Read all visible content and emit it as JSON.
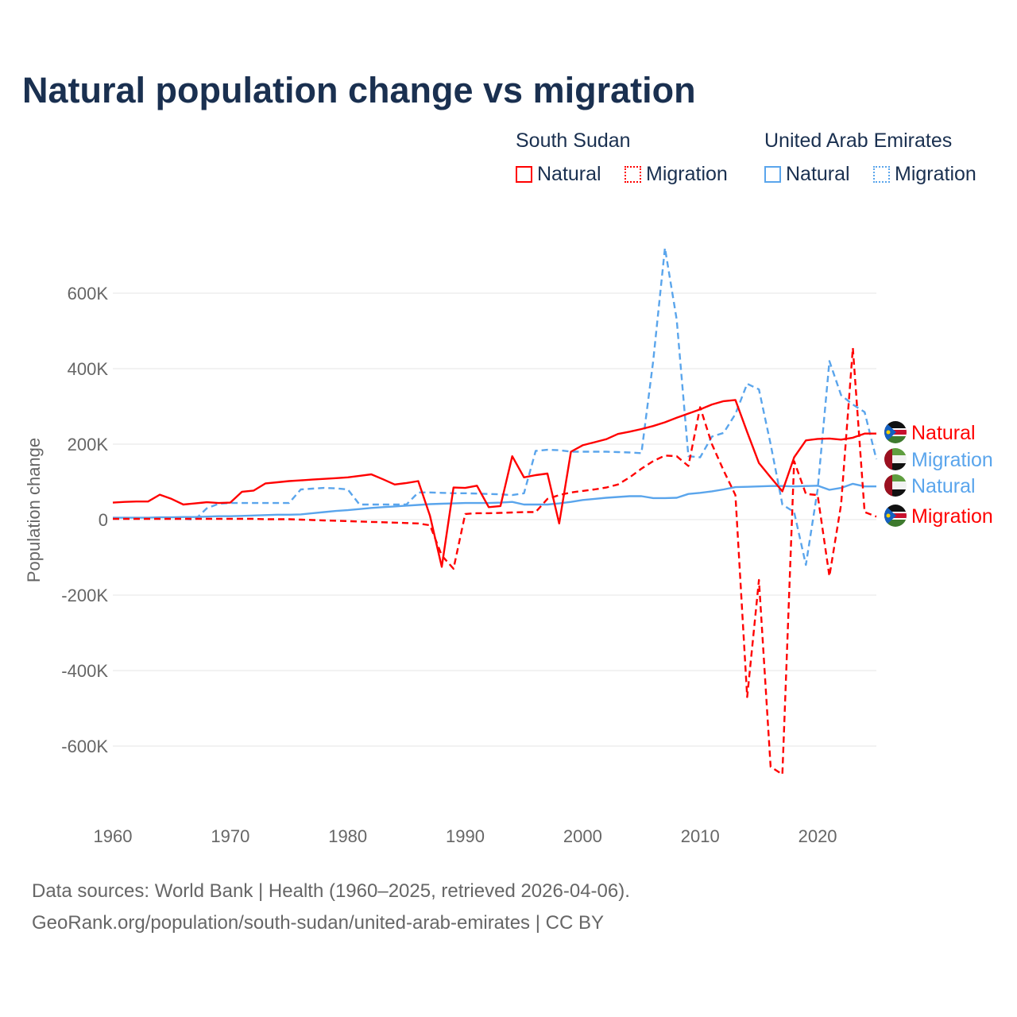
{
  "title": "Natural population change vs migration",
  "legend": {
    "groups": [
      {
        "name": "South Sudan",
        "items": [
          "Natural",
          "Migration"
        ]
      },
      {
        "name": "United Arab Emirates",
        "items": [
          "Natural",
          "Migration"
        ]
      }
    ]
  },
  "colors": {
    "south_sudan": "#ff0000",
    "uae": "#5aa5ec"
  },
  "footer": {
    "line1": "Data sources: World Bank | Health (1960–2025, retrieved 2026-04-06).",
    "line2": "GeoRank.org/population/south-sudan/united-arab-emirates | CC BY"
  },
  "chart_data": {
    "type": "line",
    "title": "Natural population change vs migration",
    "xlabel": "",
    "ylabel": "Population change",
    "xlim": [
      1960,
      2025
    ],
    "ylim": [
      -700,
      750
    ],
    "y_unit": "K",
    "xticks": [
      "1960",
      "1970",
      "1980",
      "1990",
      "2000",
      "2010",
      "2020"
    ],
    "yticks": [
      "-600K",
      "-400K",
      "-200K",
      "0",
      "200K",
      "400K",
      "600K"
    ],
    "grid": true,
    "end_labels": [
      "Natural",
      "Migration",
      "Natural",
      "Migration"
    ],
    "x": [
      1960,
      1961,
      1962,
      1963,
      1964,
      1965,
      1966,
      1967,
      1968,
      1969,
      1970,
      1971,
      1972,
      1973,
      1974,
      1975,
      1976,
      1977,
      1978,
      1979,
      1980,
      1981,
      1982,
      1983,
      1984,
      1985,
      1986,
      1987,
      1988,
      1989,
      1990,
      1991,
      1992,
      1993,
      1994,
      1995,
      1996,
      1997,
      1998,
      1999,
      2000,
      2001,
      2002,
      2003,
      2004,
      2005,
      2006,
      2007,
      2008,
      2009,
      2010,
      2011,
      2012,
      2013,
      2014,
      2015,
      2016,
      2017,
      2018,
      2019,
      2020,
      2021,
      2022,
      2023,
      2024,
      2025
    ],
    "series": [
      {
        "name": "South Sudan Natural",
        "style": "solid",
        "color": "#ff0000",
        "values": [
          45,
          47,
          48,
          48,
          66,
          55,
          40,
          43,
          46,
          44,
          45,
          74,
          77,
          96,
          99,
          102,
          104,
          106,
          108,
          110,
          112,
          116,
          120,
          107,
          93,
          97,
          102,
          10,
          -125,
          85,
          84,
          90,
          33,
          36,
          168,
          112,
          118,
          122,
          -10,
          180,
          197,
          205,
          213,
          227,
          233,
          240,
          248,
          258,
          270,
          281,
          292,
          305,
          314,
          317,
          232,
          150,
          112,
          75,
          165,
          210,
          214,
          215,
          212,
          217,
          228,
          228
        ]
      },
      {
        "name": "South Sudan Migration",
        "style": "dashed",
        "color": "#ff0000",
        "values": [
          2,
          2,
          2,
          2,
          2,
          2,
          2,
          2,
          2,
          2,
          2,
          2,
          2,
          1,
          1,
          1,
          0,
          -1,
          -2,
          -3,
          -4,
          -5,
          -6,
          -7,
          -8,
          -9,
          -10,
          -15,
          -95,
          -130,
          15,
          17,
          17,
          18,
          19,
          20,
          20,
          55,
          65,
          72,
          76,
          80,
          85,
          93,
          112,
          135,
          155,
          170,
          168,
          142,
          298,
          200,
          130,
          65,
          -470,
          -160,
          -655,
          -675,
          155,
          68,
          65,
          -150,
          40,
          455,
          20,
          8
        ]
      },
      {
        "name": "UAE Natural",
        "style": "solid",
        "color": "#5aa5ec",
        "values": [
          5,
          5,
          5,
          5,
          6,
          6,
          7,
          7,
          8,
          9,
          9,
          10,
          11,
          12,
          13,
          13,
          14,
          17,
          20,
          23,
          25,
          28,
          31,
          33,
          35,
          37,
          39,
          41,
          42,
          43,
          44,
          44,
          44,
          45,
          47,
          40,
          40,
          40,
          43,
          47,
          52,
          55,
          58,
          60,
          62,
          62,
          57,
          57,
          58,
          68,
          71,
          75,
          80,
          86,
          87,
          88,
          89,
          89,
          88,
          89,
          90,
          79,
          84,
          95,
          88,
          88
        ]
      },
      {
        "name": "UAE Migration",
        "style": "dashed",
        "color": "#5aa5ec",
        "values": [
          2,
          2,
          2,
          2,
          2,
          2,
          2,
          0,
          30,
          42,
          44,
          44,
          44,
          44,
          44,
          44,
          80,
          82,
          84,
          83,
          80,
          40,
          40,
          40,
          40,
          40,
          72,
          72,
          71,
          70,
          70,
          69,
          68,
          67,
          65,
          70,
          182,
          185,
          184,
          180,
          180,
          180,
          180,
          179,
          178,
          176,
          420,
          720,
          530,
          168,
          165,
          220,
          230,
          280,
          360,
          345,
          200,
          40,
          20,
          -120,
          80,
          420,
          330,
          305,
          285,
          160
        ]
      }
    ]
  }
}
